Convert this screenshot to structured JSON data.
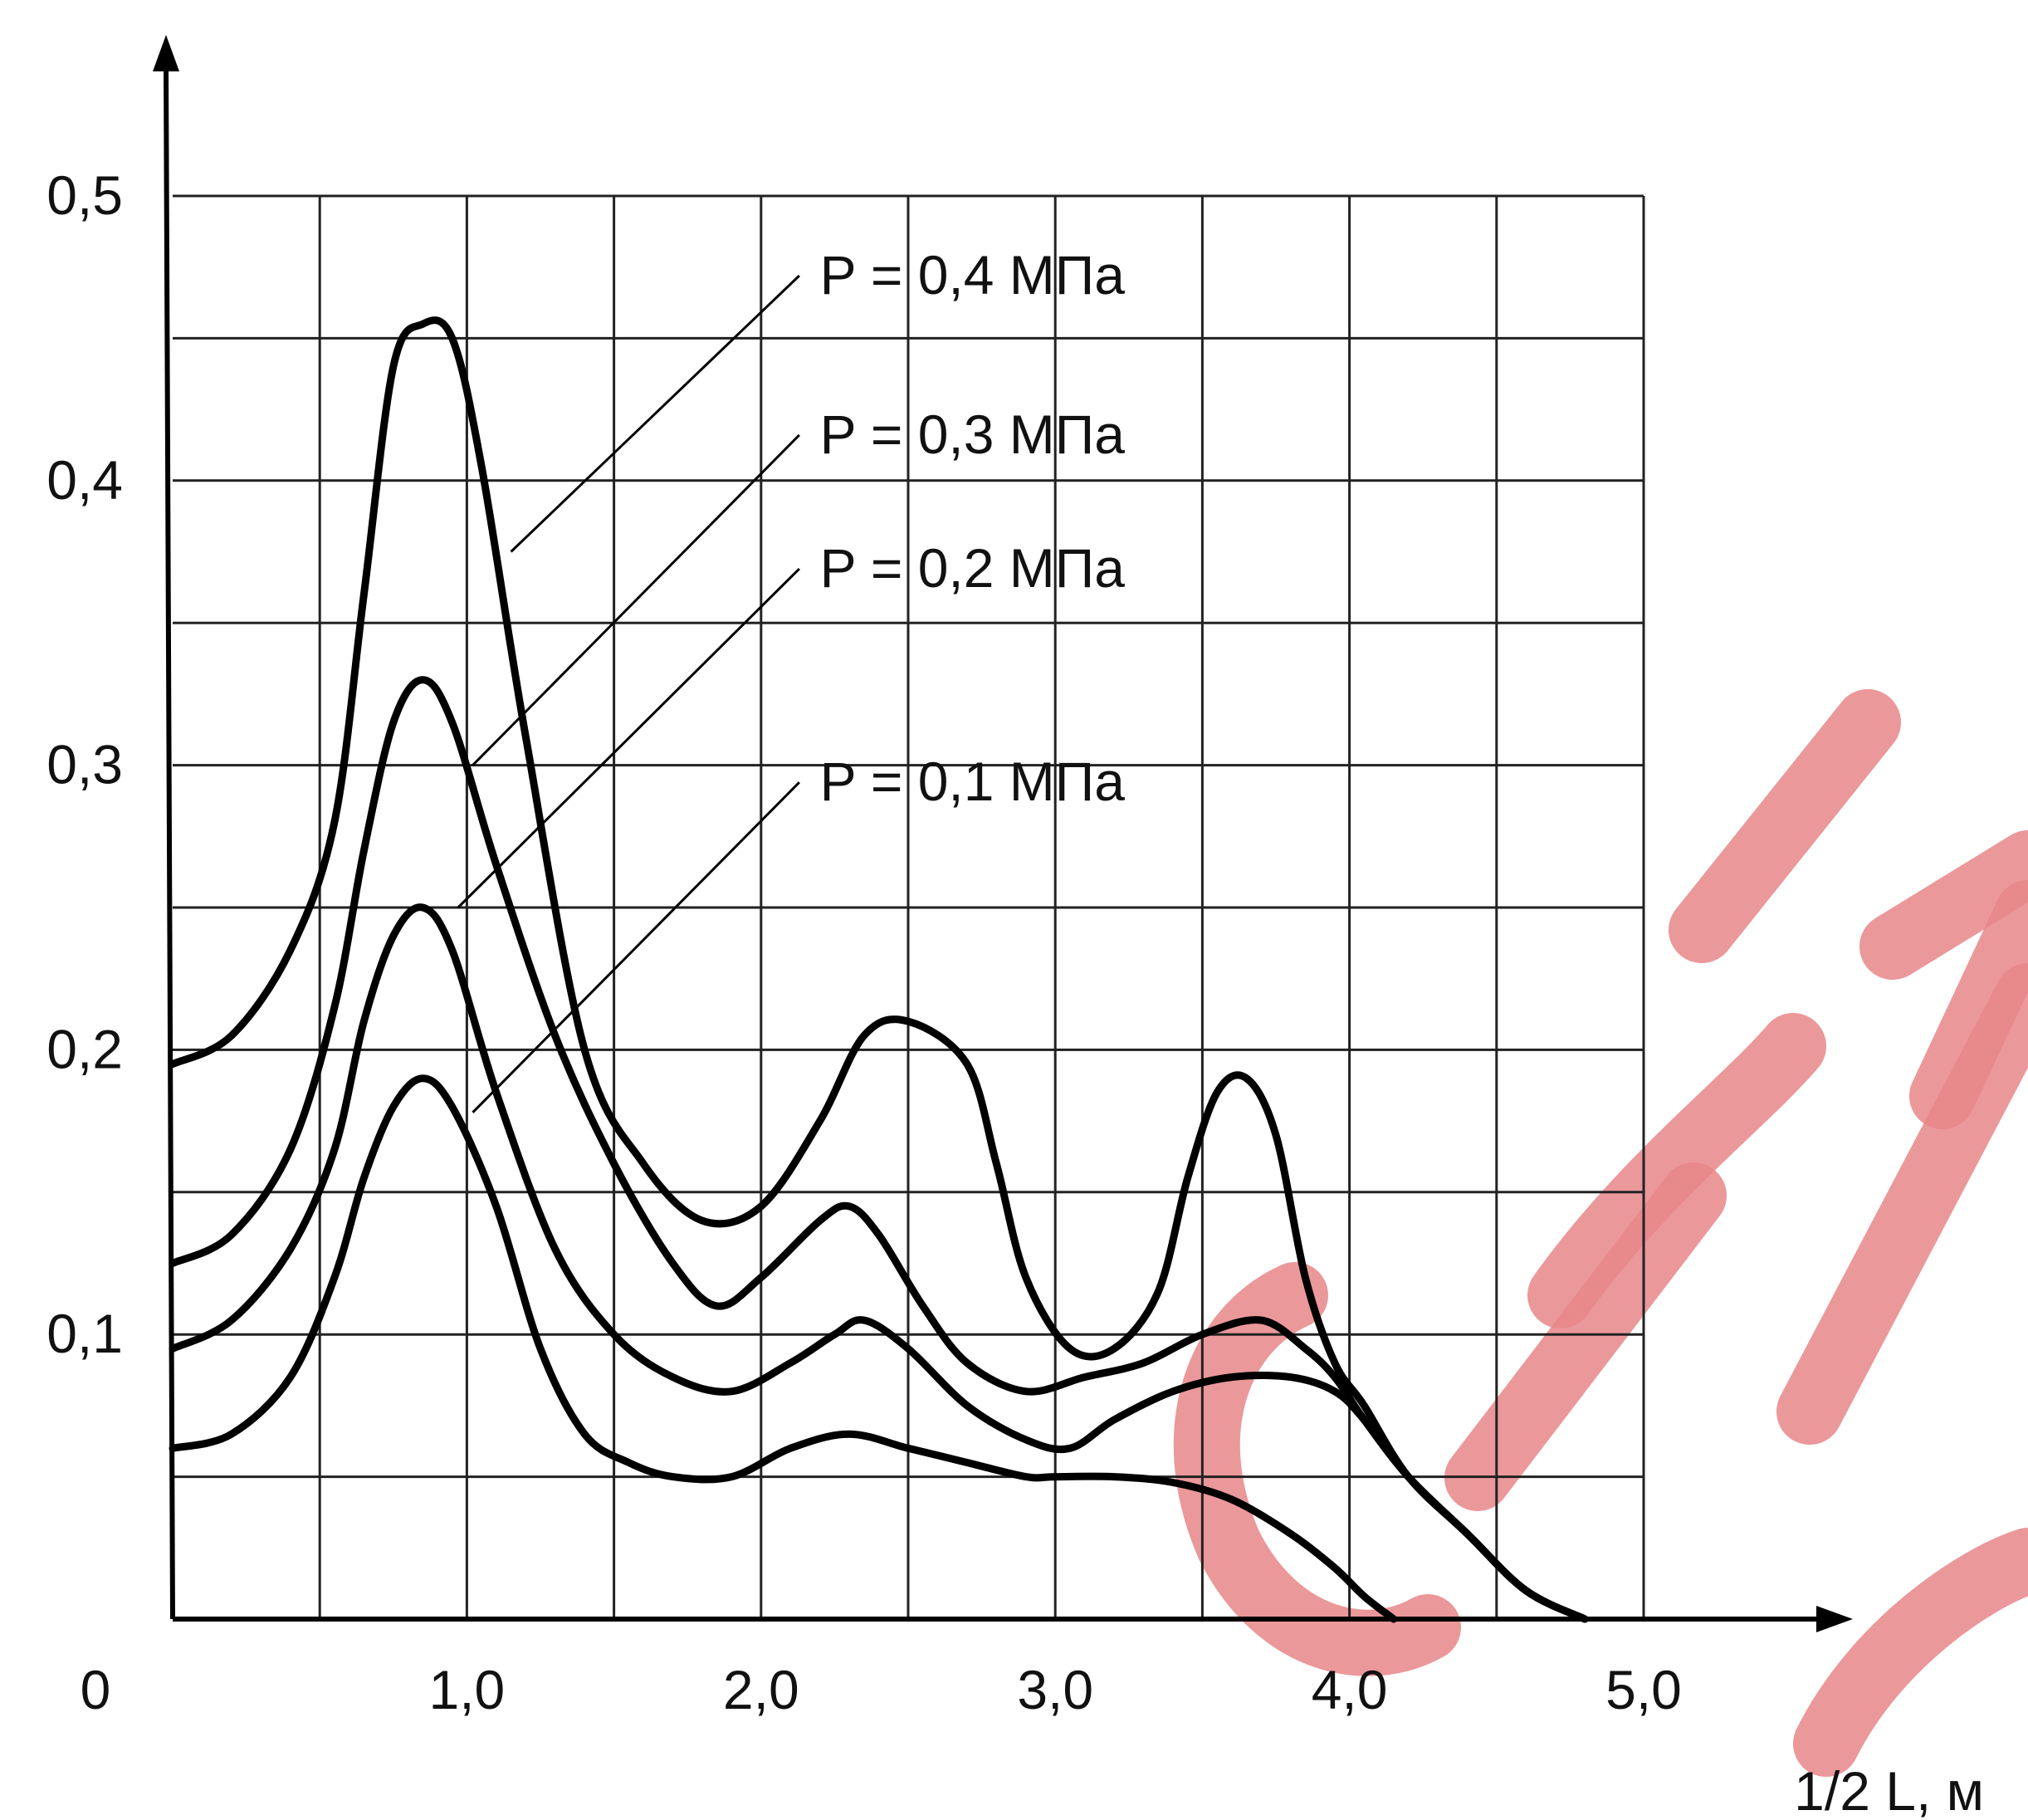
{
  "chart_data": {
    "type": "line",
    "title": "",
    "xlabel": "1/2 L,  м",
    "ylabel": "",
    "xlim": [
      0,
      5.0
    ],
    "ylim": [
      0,
      0.5
    ],
    "grid": true,
    "origin_label": "0",
    "x_ticks": [
      {
        "value": 1.0,
        "label": "1,0"
      },
      {
        "value": 2.0,
        "label": "2,0"
      },
      {
        "value": 3.0,
        "label": "3,0"
      },
      {
        "value": 4.0,
        "label": "4,0"
      },
      {
        "value": 5.0,
        "label": "5,0"
      }
    ],
    "y_ticks": [
      {
        "value": 0.1,
        "label": "0,1"
      },
      {
        "value": 0.2,
        "label": "0,2"
      },
      {
        "value": 0.3,
        "label": "0,3"
      },
      {
        "value": 0.4,
        "label": "0,4"
      },
      {
        "value": 0.5,
        "label": "0,5"
      }
    ],
    "series": [
      {
        "name": "P = 0,4 МПа",
        "x": [
          0,
          0.2,
          0.4,
          0.55,
          0.65,
          0.75,
          0.85,
          0.95,
          1.05,
          1.2,
          1.4,
          1.6,
          1.8,
          2.0,
          2.2,
          2.35,
          2.5,
          2.7,
          2.8,
          2.9,
          3.05,
          3.2,
          3.35,
          3.45,
          3.55,
          3.65,
          3.75,
          3.85,
          3.95,
          4.05,
          4.2,
          4.4,
          4.6,
          4.8
        ],
        "y": [
          0.195,
          0.205,
          0.235,
          0.28,
          0.36,
          0.44,
          0.455,
          0.45,
          0.405,
          0.31,
          0.2,
          0.16,
          0.14,
          0.145,
          0.175,
          0.205,
          0.21,
          0.195,
          0.16,
          0.12,
          0.095,
          0.095,
          0.115,
          0.155,
          0.185,
          0.19,
          0.17,
          0.12,
          0.09,
          0.075,
          0.05,
          0.03,
          0.01,
          0.0
        ]
      },
      {
        "name": "P = 0,3 МПа",
        "x": [
          0,
          0.2,
          0.4,
          0.55,
          0.65,
          0.75,
          0.85,
          0.95,
          1.1,
          1.3,
          1.5,
          1.7,
          1.85,
          2.0,
          2.2,
          2.3,
          2.4,
          2.55,
          2.7,
          2.9,
          3.1,
          3.3,
          3.5,
          3.7,
          3.85,
          3.95,
          4.05,
          4.2,
          4.4,
          4.6,
          4.8
        ],
        "y": [
          0.125,
          0.135,
          0.165,
          0.215,
          0.27,
          0.315,
          0.33,
          0.315,
          0.265,
          0.205,
          0.16,
          0.125,
          0.11,
          0.12,
          0.14,
          0.145,
          0.135,
          0.11,
          0.09,
          0.08,
          0.085,
          0.09,
          0.1,
          0.105,
          0.095,
          0.085,
          0.07,
          0.05,
          0.03,
          0.01,
          0.0
        ]
      },
      {
        "name": "P = 0,2 МПа",
        "x": [
          0,
          0.2,
          0.4,
          0.55,
          0.65,
          0.75,
          0.85,
          0.95,
          1.1,
          1.3,
          1.5,
          1.7,
          1.9,
          2.1,
          2.25,
          2.35,
          2.5,
          2.7,
          2.9,
          3.05,
          3.2,
          3.4,
          3.6,
          3.8,
          3.95,
          4.05,
          4.2,
          4.4,
          4.6,
          4.8
        ],
        "y": [
          0.095,
          0.105,
          0.13,
          0.165,
          0.21,
          0.24,
          0.25,
          0.235,
          0.185,
          0.13,
          0.1,
          0.085,
          0.08,
          0.09,
          0.1,
          0.105,
          0.095,
          0.075,
          0.063,
          0.06,
          0.07,
          0.08,
          0.085,
          0.085,
          0.08,
          0.07,
          0.05,
          0.03,
          0.01,
          0.0
        ]
      },
      {
        "name": "P = 0,1 МПа",
        "x": [
          0,
          0.2,
          0.4,
          0.55,
          0.65,
          0.75,
          0.85,
          0.95,
          1.1,
          1.25,
          1.4,
          1.55,
          1.7,
          1.9,
          2.1,
          2.3,
          2.5,
          2.7,
          2.9,
          3.0,
          3.2,
          3.4,
          3.6,
          3.8,
          3.95,
          4.05,
          4.15
        ],
        "y": [
          0.06,
          0.065,
          0.085,
          0.12,
          0.155,
          0.18,
          0.19,
          0.18,
          0.145,
          0.095,
          0.065,
          0.055,
          0.05,
          0.05,
          0.06,
          0.065,
          0.06,
          0.055,
          0.05,
          0.05,
          0.05,
          0.048,
          0.042,
          0.03,
          0.018,
          0.008,
          0.0
        ]
      }
    ],
    "annotations": [
      {
        "series": "P = 0,4 МПа",
        "label": "P = 0,4 МПа",
        "label_pos": {
          "x": 2.2,
          "y": 0.472
        },
        "leader_from": {
          "x": 2.13,
          "y": 0.472
        },
        "leader_to": {
          "x": 1.15,
          "y": 0.375
        }
      },
      {
        "series": "P = 0,3 МПа",
        "label": "P = 0,3 МПа",
        "label_pos": {
          "x": 2.2,
          "y": 0.416
        },
        "leader_from": {
          "x": 2.13,
          "y": 0.416
        },
        "leader_to": {
          "x": 1.02,
          "y": 0.3
        }
      },
      {
        "series": "P = 0,2 МПа",
        "label": "P = 0,2 МПа",
        "label_pos": {
          "x": 2.2,
          "y": 0.369
        },
        "leader_from": {
          "x": 2.13,
          "y": 0.369
        },
        "leader_to": {
          "x": 0.97,
          "y": 0.25
        }
      },
      {
        "series": "P = 0,1 МПа",
        "label": "P = 0,1 МПа",
        "label_pos": {
          "x": 2.2,
          "y": 0.294
        },
        "leader_from": {
          "x": 2.13,
          "y": 0.294
        },
        "leader_to": {
          "x": 1.02,
          "y": 0.178
        }
      }
    ]
  }
}
